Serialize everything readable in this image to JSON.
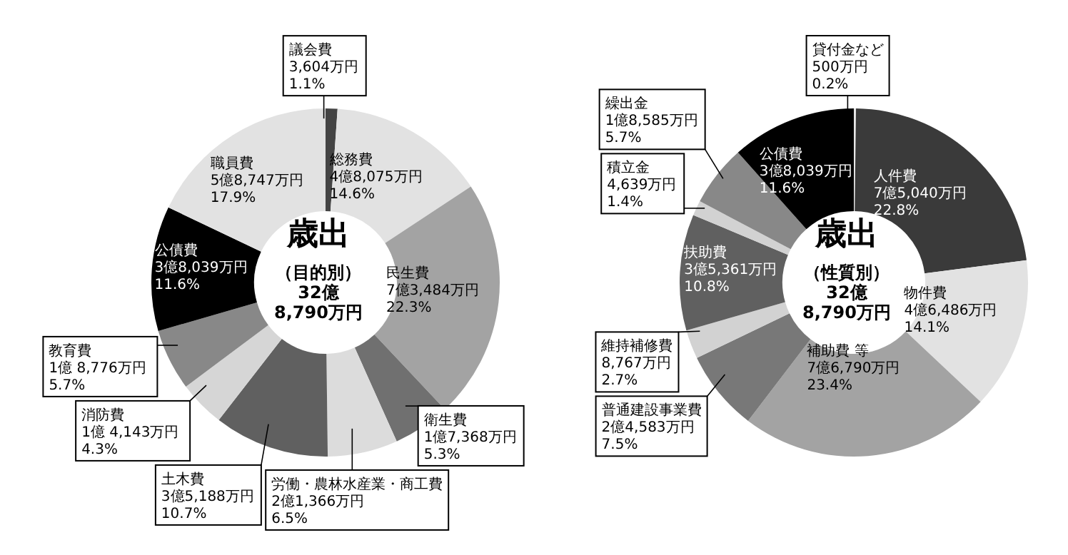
{
  "chart_data": [
    {
      "type": "donut",
      "title": "歳出",
      "subtitle": "（目的別）",
      "annotations": [
        "32億\n8,790万円"
      ],
      "categories": [
        "議会費",
        "総務費",
        "民生費",
        "衛生費",
        "労働・農林水産業・商工費",
        "土木費",
        "消防費",
        "教育費",
        "公債費",
        "職員費"
      ],
      "values": [
        1.1,
        14.6,
        22.3,
        5.3,
        6.5,
        10.7,
        4.3,
        5.7,
        11.6,
        17.9
      ],
      "colors": [
        "#444444",
        "#e2e2e2",
        "#a3a3a3",
        "#707070",
        "#dcdcdc",
        "#606060",
        "#d6d6d6",
        "#888888",
        "#000000",
        "#e2e2e2"
      ],
      "value_labels": [
        "3,604万円\n1.1%",
        "4億8,075万円\n14.6%",
        "7億3,484万円\n22.3%",
        "1億7,368万円\n5.3%",
        "2億1,366万円\n6.5%",
        "3億5,188万円\n10.7%",
        "1億 4,143万円\n4.3%",
        "1億 8,776万円\n5.7%",
        "3億8,039万円\n11.6%",
        "5億8,747万円\n17.9%"
      ]
    },
    {
      "type": "donut",
      "title": "歳出",
      "subtitle": "（性質別）",
      "annotations": [
        "32億\n8,790万円"
      ],
      "categories": [
        "貸付金など",
        "人件費",
        "物件費",
        "補助費 等",
        "普通建設事業費",
        "維持補修費",
        "扶助費",
        "積立金",
        "繰出金",
        "公債費"
      ],
      "values": [
        0.2,
        22.8,
        14.1,
        23.4,
        7.5,
        2.7,
        10.8,
        1.4,
        5.7,
        11.6
      ],
      "colors": [
        "#e6e6e6",
        "#3a3a3a",
        "#e2e2e2",
        "#a3a3a3",
        "#787878",
        "#d2d2d2",
        "#606060",
        "#d2d2d2",
        "#888888",
        "#000000"
      ],
      "value_labels": [
        "500万円\n0.2%",
        "7億5,040万円\n22.8%",
        "4億6,486万円\n14.1%",
        "7億6,790万円\n23.4%",
        "2億4,583万円\n7.5%",
        "8,767万円\n2.7%",
        "3億5,361万円\n10.8%",
        "4,639万円\n1.4%",
        "1億8,585万円\n5.7%",
        "3億8,039万円\n11.6%"
      ]
    }
  ]
}
